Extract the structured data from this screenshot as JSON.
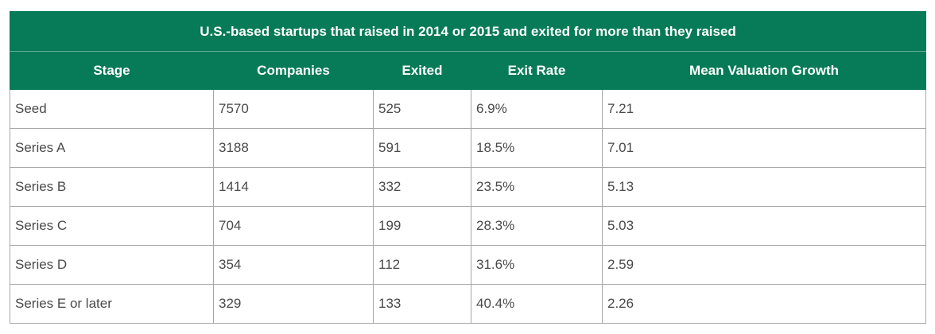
{
  "chart_data": {
    "type": "table",
    "title": "U.S.-based startups that raised in 2014 or 2015 and exited for more than they raised",
    "columns": [
      "Stage",
      "Companies",
      "Exited",
      "Exit Rate",
      "Mean Valuation Growth"
    ],
    "rows": [
      [
        "Seed",
        "7570",
        "525",
        "6.9%",
        "7.21"
      ],
      [
        "Series A",
        "3188",
        "591",
        "18.5%",
        "7.01"
      ],
      [
        "Series B",
        "1414",
        "332",
        "23.5%",
        "5.13"
      ],
      [
        "Series C",
        "704",
        "199",
        "28.3%",
        "5.03"
      ],
      [
        "Series D",
        "354",
        "112",
        "31.6%",
        "2.59"
      ],
      [
        "Series E or later",
        "329",
        "133",
        "40.4%",
        "2.26"
      ]
    ],
    "header_color": "#077a57"
  }
}
